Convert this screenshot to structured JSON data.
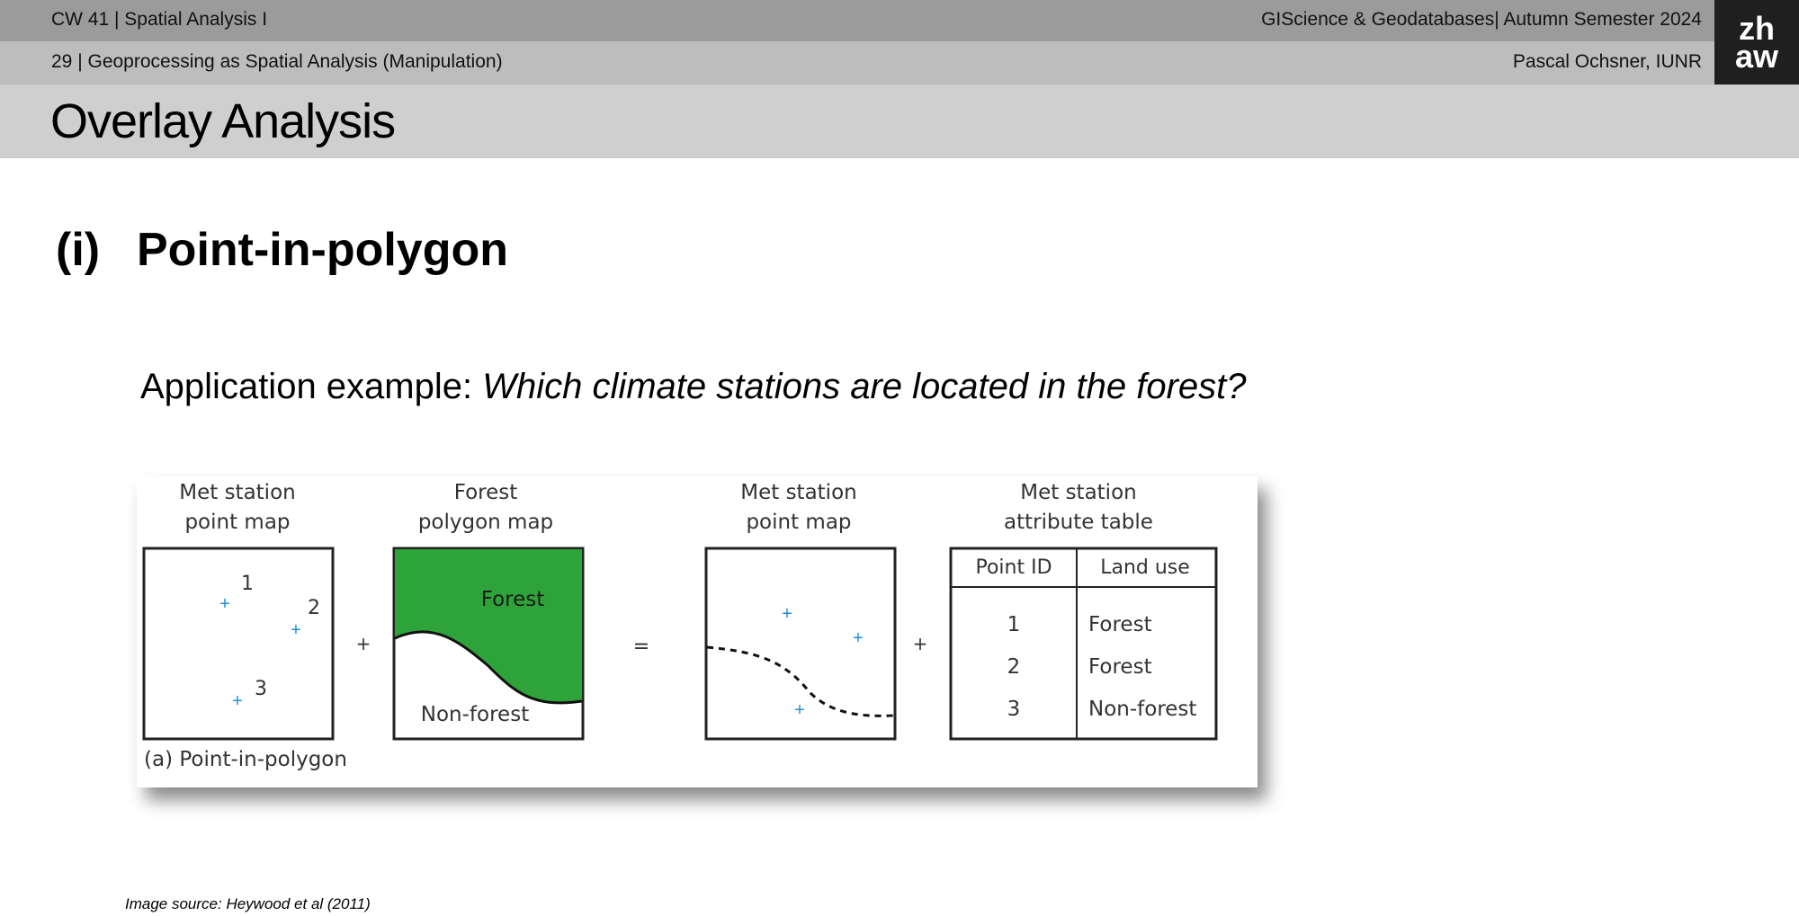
{
  "header": {
    "course_line": "CW 41 | Spatial Analysis I",
    "course_title": "GIScience & Geodatabases| Autumn Semester 2024",
    "slide_line": "29 | Geoprocessing as Spatial Analysis (Manipulation)",
    "author": "Pascal Ochsner, IUNR",
    "logo": [
      "zh",
      "aw"
    ]
  },
  "slide": {
    "title": "Overlay Analysis",
    "section_number": "(i)",
    "section_title": "Point-in-polygon",
    "application_label": "Application example: ",
    "application_question": "Which climate stations are located in the forest?",
    "image_source": "Image source: Heywood et al (2011)"
  },
  "figure": {
    "panel1_title": [
      "Met station",
      "point map"
    ],
    "panel2_title": [
      "Forest",
      "polygon map"
    ],
    "panel3_title": [
      "Met station",
      "point map"
    ],
    "panel4_title": [
      "Met station",
      "attribute table"
    ],
    "forest_label": "Forest",
    "nonforest_label": "Non-forest",
    "plus_sign": "+",
    "equals_sign": "=",
    "caption": "(a) Point-in-polygon",
    "point_labels": [
      "1",
      "2",
      "3"
    ],
    "table_headers": [
      "Point ID",
      "Land use"
    ],
    "table_rows": [
      [
        "1",
        "Forest"
      ],
      [
        "2",
        "Forest"
      ],
      [
        "3",
        "Non-forest"
      ]
    ],
    "colors": {
      "forest": "#2ea33a",
      "station": "#1e8fd6"
    }
  }
}
